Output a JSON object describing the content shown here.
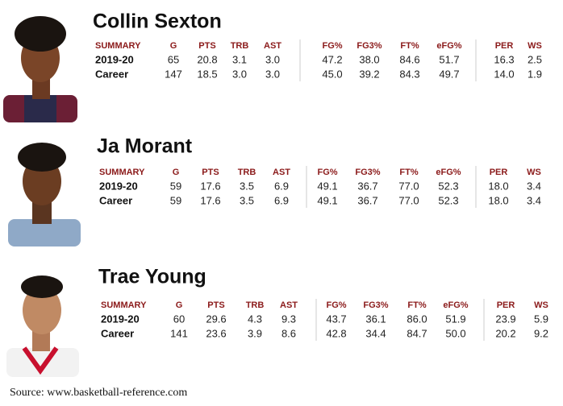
{
  "players": [
    {
      "name": "Collin Sexton",
      "header": [
        "SUMMARY",
        "G",
        "PTS",
        "TRB",
        "AST",
        "FG%",
        "FG3%",
        "FT%",
        "eFG%",
        "PER",
        "WS"
      ],
      "rows": [
        [
          "2019-20",
          "65",
          "20.8",
          "3.1",
          "3.0",
          "47.2",
          "38.0",
          "84.6",
          "51.7",
          "16.3",
          "2.5"
        ],
        [
          "Career",
          "147",
          "18.5",
          "3.0",
          "3.0",
          "45.0",
          "39.2",
          "84.3",
          "49.7",
          "14.0",
          "1.9"
        ]
      ]
    },
    {
      "name": "Ja Morant",
      "header": [
        "SUMMARY",
        "G",
        "PTS",
        "TRB",
        "AST",
        "FG%",
        "FG3%",
        "FT%",
        "eFG%",
        "PER",
        "WS"
      ],
      "rows": [
        [
          "2019-20",
          "59",
          "17.6",
          "3.5",
          "6.9",
          "49.1",
          "36.7",
          "77.0",
          "52.3",
          "18.0",
          "3.4"
        ],
        [
          "Career",
          "59",
          "17.6",
          "3.5",
          "6.9",
          "49.1",
          "36.7",
          "77.0",
          "52.3",
          "18.0",
          "3.4"
        ]
      ]
    },
    {
      "name": "Trae Young",
      "header": [
        "SUMMARY",
        "G",
        "PTS",
        "TRB",
        "AST",
        "FG%",
        "FG3%",
        "FT%",
        "eFG%",
        "PER",
        "WS"
      ],
      "rows": [
        [
          "2019-20",
          "60",
          "29.6",
          "4.3",
          "9.3",
          "43.7",
          "36.1",
          "86.0",
          "51.9",
          "23.9",
          "5.9"
        ],
        [
          "Career",
          "141",
          "23.6",
          "3.9",
          "8.6",
          "42.8",
          "34.4",
          "84.7",
          "50.0",
          "20.2",
          "9.2"
        ]
      ]
    }
  ],
  "source": "Source: www.basketball-reference.com"
}
